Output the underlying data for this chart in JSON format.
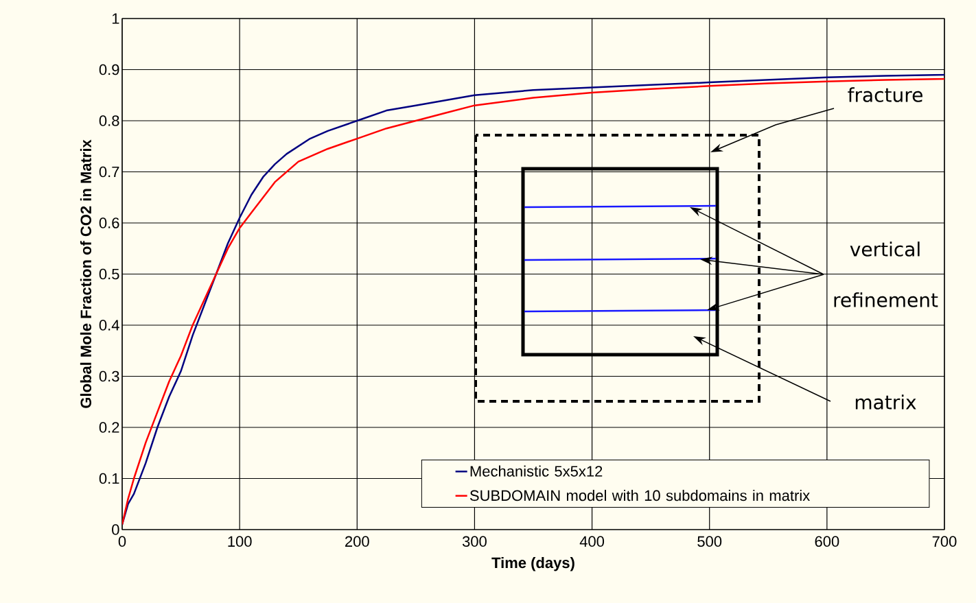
{
  "chart_data": {
    "type": "line",
    "xlabel": "Time (days)",
    "ylabel": "Global Mole Fraction of CO2 in Matrix",
    "xlim": [
      0,
      700
    ],
    "xticks": [
      0,
      100,
      200,
      300,
      400,
      500,
      600,
      700
    ],
    "ylim": [
      0,
      1
    ],
    "yticks": [
      0,
      0.1,
      0.2,
      0.3,
      0.4,
      0.5,
      0.6,
      0.7,
      0.8,
      0.9,
      1
    ],
    "grid": true,
    "legend": "bottom right",
    "marker": "none",
    "line_style": "solid",
    "annotations": [
      "fracture",
      "vertical refinement",
      "matrix"
    ],
    "series": [
      {
        "name": "Mechanistic 5x5x12",
        "color": "#000080",
        "x": [
          0,
          5,
          10,
          20,
          30,
          40,
          50,
          60,
          70,
          80,
          90,
          100,
          110,
          120,
          130,
          140,
          150,
          160,
          175,
          200,
          225,
          250,
          275,
          300,
          350,
          400,
          450,
          500,
          550,
          600,
          650,
          700
        ],
        "values": [
          0.01,
          0.05,
          0.07,
          0.13,
          0.2,
          0.26,
          0.31,
          0.38,
          0.44,
          0.5,
          0.56,
          0.61,
          0.655,
          0.69,
          0.715,
          0.735,
          0.75,
          0.765,
          0.78,
          0.8,
          0.82,
          0.83,
          0.84,
          0.85,
          0.86,
          0.865,
          0.87,
          0.875,
          0.88,
          0.885,
          0.888,
          0.89
        ]
      },
      {
        "name": "SUBDOMAIN model with 10 subdomains in matrix",
        "color": "#ff0000",
        "x": [
          0,
          5,
          10,
          20,
          30,
          40,
          50,
          60,
          70,
          80,
          90,
          100,
          110,
          120,
          130,
          140,
          150,
          175,
          200,
          225,
          250,
          275,
          300,
          350,
          400,
          450,
          500,
          550,
          600,
          650,
          700
        ],
        "values": [
          0.01,
          0.06,
          0.1,
          0.17,
          0.23,
          0.29,
          0.34,
          0.4,
          0.45,
          0.5,
          0.55,
          0.59,
          0.62,
          0.65,
          0.68,
          0.7,
          0.72,
          0.745,
          0.765,
          0.785,
          0.8,
          0.815,
          0.83,
          0.845,
          0.855,
          0.862,
          0.868,
          0.873,
          0.877,
          0.88,
          0.882
        ]
      }
    ]
  }
}
